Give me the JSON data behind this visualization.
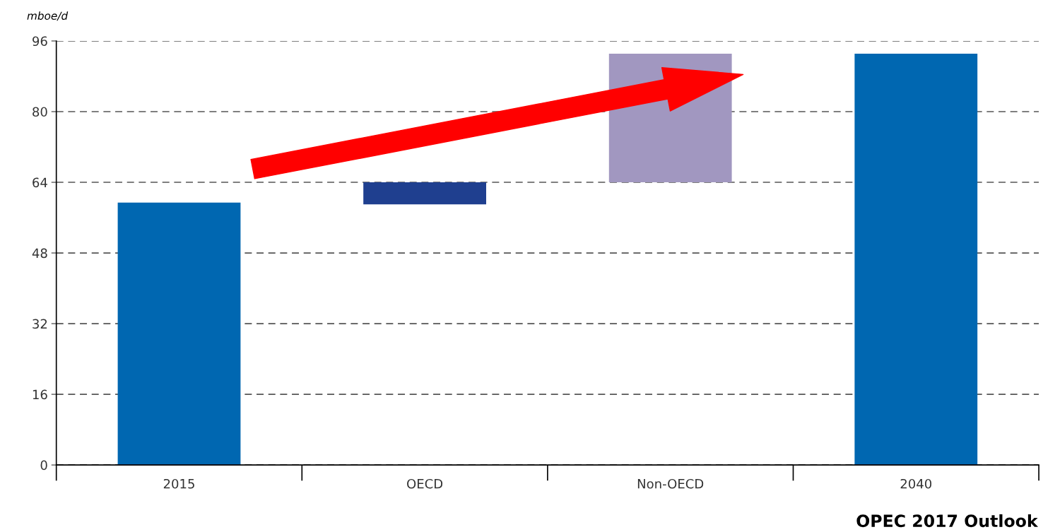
{
  "chart_data": {
    "type": "bar",
    "ylabel": "mboe/d",
    "categories": [
      "2015",
      "OECD",
      "Non-OECD",
      "2040"
    ],
    "values": [
      59.4,
      -5,
      29.1,
      93.1
    ],
    "base": [
      0,
      64,
      64,
      0
    ],
    "colors": [
      "#0067b1",
      "#1f3f8f",
      "#a197c0",
      "#0067b1"
    ],
    "ylim": [
      0,
      96
    ],
    "yticks": [
      0,
      16,
      32,
      48,
      64,
      80,
      96
    ],
    "grid": "y",
    "annotations": [
      "OPEC 2017 Outlook"
    ]
  }
}
